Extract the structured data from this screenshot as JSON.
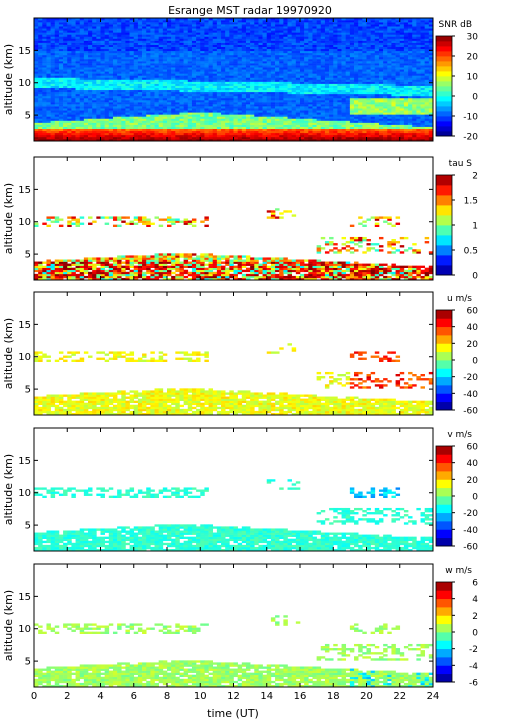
{
  "title": "Esrange MST radar 19970920",
  "xlabel": "time (UT)",
  "x_ticks": [
    "0",
    "2",
    "4",
    "6",
    "8",
    "10",
    "12",
    "14",
    "16",
    "18",
    "20",
    "22",
    "24"
  ],
  "chart_data": [
    {
      "type": "heatmap",
      "name": "snr",
      "ylabel": "altitude (km)",
      "y_ticks": [
        "5",
        "10",
        "15"
      ],
      "xlim": [
        0,
        24
      ],
      "ylim": [
        1,
        20
      ],
      "colorbar": {
        "label": "SNR dB",
        "ticks": [
          "30",
          "20",
          "10",
          "0",
          "-10",
          "-20"
        ],
        "range": [
          -20,
          30
        ],
        "levels": 20
      },
      "profile_note_values_km": {
        "strong_echo_band": [
          1,
          3
        ],
        "secondary_layer": [
          9.5,
          10.5
        ]
      }
    },
    {
      "type": "heatmap",
      "name": "tau",
      "ylabel": "altitude (km)",
      "y_ticks": [
        "5",
        "10",
        "15"
      ],
      "xlim": [
        0,
        24
      ],
      "ylim": [
        1,
        20
      ],
      "colorbar": {
        "label": "tau S",
        "ticks": [
          "2",
          "1.5",
          "1",
          "0.5",
          "0"
        ],
        "range": [
          0,
          2
        ],
        "levels": 10
      }
    },
    {
      "type": "heatmap",
      "name": "u",
      "ylabel": "altitude (km)",
      "y_ticks": [
        "5",
        "10",
        "15"
      ],
      "xlim": [
        0,
        24
      ],
      "ylim": [
        1,
        20
      ],
      "colorbar": {
        "label": "u m/s",
        "ticks": [
          "60",
          "40",
          "20",
          "0",
          "-20",
          "-40",
          "-60"
        ],
        "range": [
          -60,
          60
        ],
        "levels": 12
      }
    },
    {
      "type": "heatmap",
      "name": "v",
      "ylabel": "altitude (km)",
      "y_ticks": [
        "5",
        "10",
        "15"
      ],
      "xlim": [
        0,
        24
      ],
      "ylim": [
        1,
        20
      ],
      "colorbar": {
        "label": "v m/s",
        "ticks": [
          "60",
          "40",
          "20",
          "0",
          "-20",
          "-40",
          "-60"
        ],
        "range": [
          -60,
          60
        ],
        "levels": 12
      }
    },
    {
      "type": "heatmap",
      "name": "w",
      "ylabel": "altitude (km)",
      "y_ticks": [
        "5",
        "10",
        "15"
      ],
      "xlim": [
        0,
        24
      ],
      "ylim": [
        1,
        20
      ],
      "colorbar": {
        "label": "w m/s",
        "ticks": [
          "6",
          "4",
          "2",
          "0",
          "-2",
          "-4",
          "-6"
        ],
        "range": [
          -6,
          6
        ],
        "levels": 12
      }
    }
  ]
}
